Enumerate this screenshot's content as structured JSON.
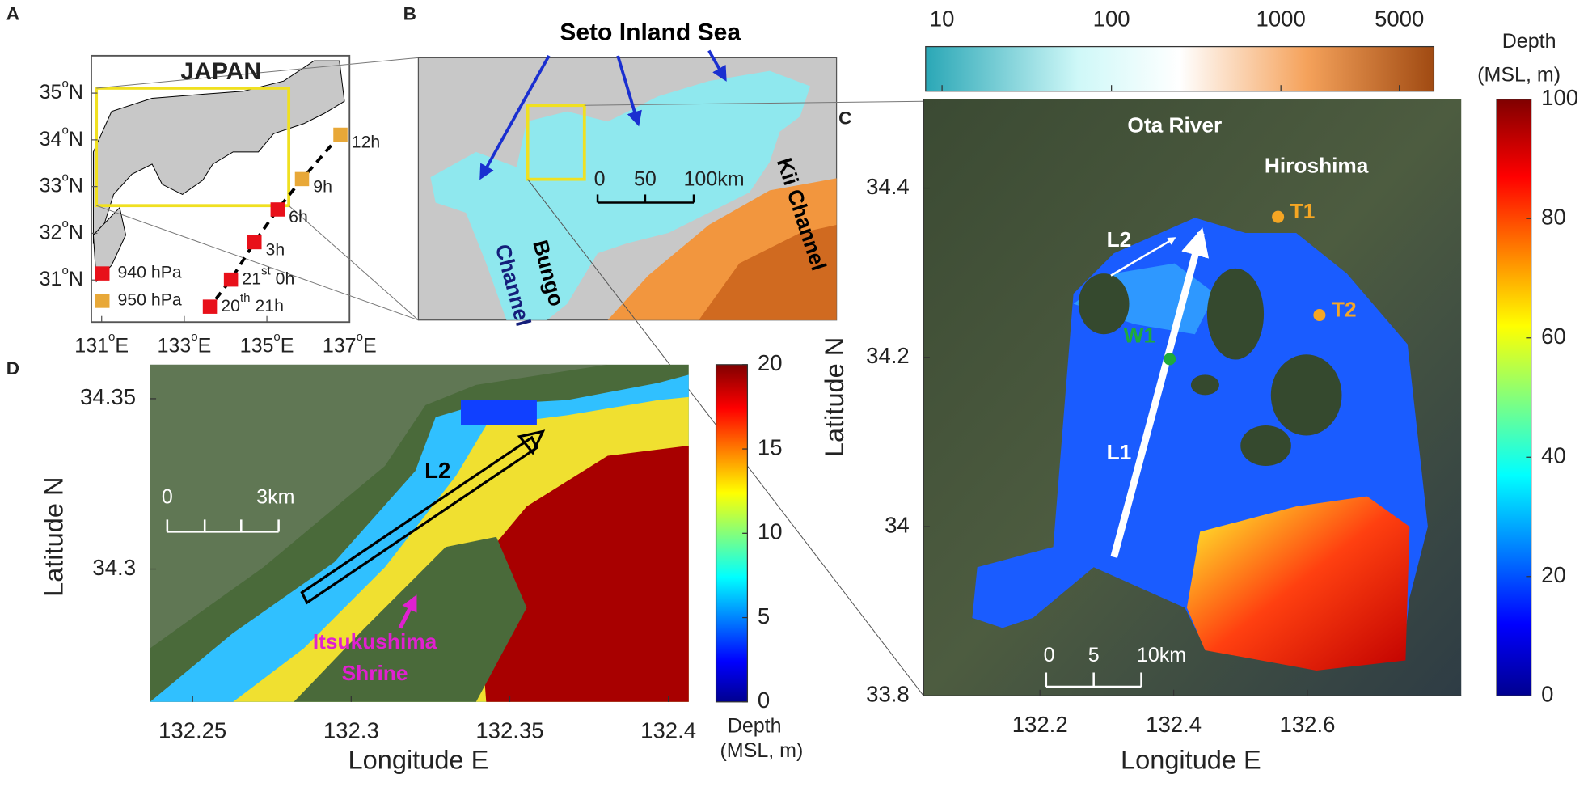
{
  "panel_a": {
    "label": "A",
    "title": "JAPAN",
    "xlim": [
      130.75,
      137.0
    ],
    "ylim": [
      30.1,
      35.8
    ],
    "yticks": [
      {
        "value": 35,
        "label": "35",
        "sup": "o",
        "hem": "N"
      },
      {
        "value": 34,
        "label": "34",
        "sup": "o",
        "hem": "N"
      },
      {
        "value": 33,
        "label": "33",
        "sup": "o",
        "hem": "N"
      },
      {
        "value": 32,
        "label": "32",
        "sup": "o",
        "hem": "N"
      },
      {
        "value": 31,
        "label": "31",
        "sup": "o",
        "hem": "N"
      }
    ],
    "xticks": [
      {
        "value": 131,
        "label": "131",
        "sup": "o",
        "hem": "E"
      },
      {
        "value": 133,
        "label": "133",
        "sup": "o",
        "hem": "E"
      },
      {
        "value": 135,
        "label": "135",
        "sup": "o",
        "hem": "E"
      },
      {
        "value": 137,
        "label": "137",
        "sup": "o",
        "hem": "E"
      }
    ],
    "track": [
      {
        "lon": 136.78,
        "lat": 34.11,
        "color": "#e8a838",
        "day": "",
        "sup": "",
        "time": "12h"
      },
      {
        "lon": 135.85,
        "lat": 33.16,
        "color": "#e8a838",
        "day": "",
        "sup": "",
        "time": "9h"
      },
      {
        "lon": 135.26,
        "lat": 32.51,
        "color": "#e8101a",
        "day": "",
        "sup": "",
        "time": "6h"
      },
      {
        "lon": 134.7,
        "lat": 31.81,
        "color": "#e8101a",
        "day": "",
        "sup": "",
        "time": "3h"
      },
      {
        "lon": 134.13,
        "lat": 31.01,
        "color": "#e8101a",
        "day": "21",
        "sup": "st",
        "time": " 0h"
      },
      {
        "lon": 133.62,
        "lat": 30.43,
        "color": "#e8101a",
        "day": "20",
        "sup": "th",
        "time": " 21h"
      }
    ],
    "legend": [
      {
        "label": "940 hPa",
        "color": "#e8101a"
      },
      {
        "label": "950 hPa",
        "color": "#e8a838"
      }
    ]
  },
  "panel_b": {
    "label": "B",
    "title": "Seto Inland Sea",
    "annotations": {
      "kii": "Kii Channel",
      "bungo": "Bungo",
      "channel": "Channel"
    },
    "scale_bar": [
      "0",
      "50",
      "100km"
    ],
    "colorbar": {
      "lim": [
        8,
        8000
      ],
      "log": true,
      "ticks": [
        10,
        100,
        1000,
        5000
      ]
    }
  },
  "panel_c": {
    "label": "C",
    "xlabel": "Longitude E",
    "ylabel": "Latitude N",
    "xlim": [
      132.026,
      132.83
    ],
    "ylim": [
      33.8,
      34.505
    ],
    "xticks": [
      132.2,
      132.4,
      132.6
    ],
    "yticks": [
      33.8,
      34,
      34.2,
      34.4
    ],
    "annotations": {
      "river": "Ota River",
      "city": "Hiroshima",
      "l1": "L1",
      "l2": "L2"
    },
    "stations": [
      {
        "label": "T1",
        "lon": 132.556,
        "lat": 34.366,
        "color": "#f5a623"
      },
      {
        "label": "T2",
        "lon": 132.618,
        "lat": 34.25,
        "color": "#f5a623"
      },
      {
        "label": "W1",
        "lon": 132.394,
        "lat": 34.198,
        "color": "#1faa3c"
      }
    ],
    "scale_bar": [
      "0",
      "5",
      "10km"
    ],
    "colorbar": {
      "title": [
        "Depth",
        "(MSL, m)"
      ],
      "lim": [
        0,
        100
      ],
      "ticks": [
        0,
        20,
        40,
        60,
        80,
        100
      ]
    }
  },
  "panel_d": {
    "label": "D",
    "xlabel": "Longitude E",
    "ylabel": "Latitude N",
    "xlim": [
      132.2366,
      132.4064
    ],
    "ylim": [
      34.261,
      34.36
    ],
    "xticks": [
      132.25,
      132.3,
      132.35,
      132.4
    ],
    "yticks": [
      34.3,
      34.35
    ],
    "annotations": {
      "l2": "L2",
      "shrine1": "Itsukushima",
      "shrine2": "Shrine"
    },
    "scale_bar": [
      "0",
      "3km"
    ],
    "colorbar": {
      "title": [
        "Depth",
        "(MSL, m)"
      ],
      "lim": [
        0,
        20
      ],
      "ticks": [
        0,
        5,
        10,
        15,
        20
      ]
    }
  }
}
